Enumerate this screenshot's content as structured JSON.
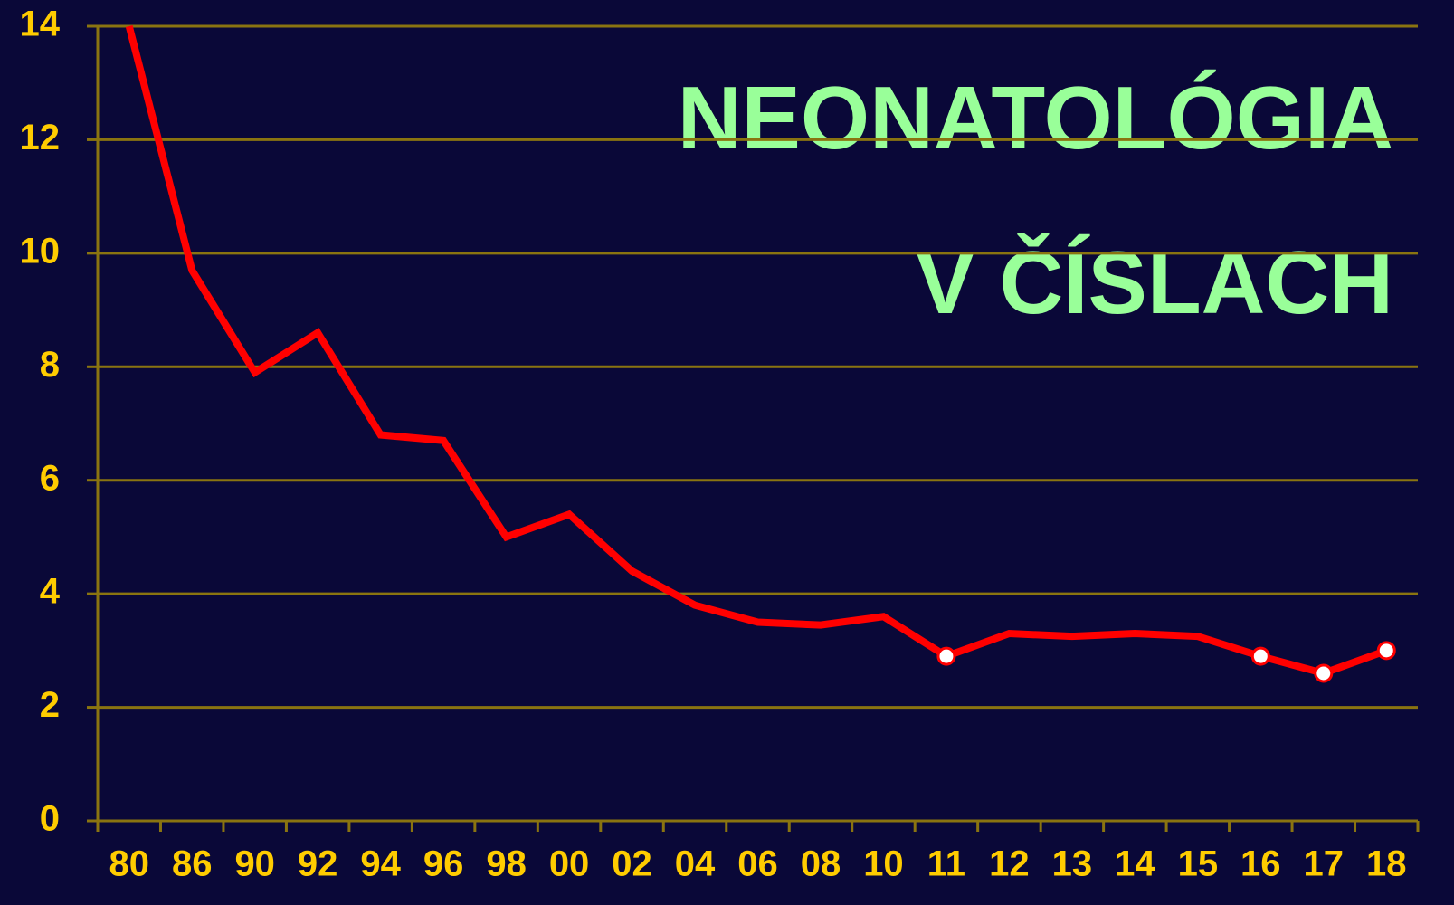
{
  "chart_data": {
    "type": "line",
    "title": "NEONATOLÓGIA",
    "subtitle": "V ČÍSLACH",
    "categories": [
      "80",
      "86",
      "90",
      "92",
      "94",
      "96",
      "98",
      "00",
      "02",
      "04",
      "06",
      "08",
      "10",
      "11",
      "12",
      "13",
      "14",
      "15",
      "16",
      "17",
      "18"
    ],
    "series": [
      {
        "color": "#ff0000",
        "values": [
          14,
          9.7,
          7.9,
          8.6,
          6.8,
          6.7,
          5.0,
          5.4,
          4.4,
          3.8,
          3.5,
          3.45,
          3.6,
          2.9,
          3.3,
          3.25,
          3.3,
          3.25,
          2.9,
          2.6,
          3.0
        ],
        "markers": [
          false,
          false,
          false,
          false,
          false,
          false,
          false,
          false,
          false,
          false,
          false,
          false,
          false,
          true,
          false,
          false,
          false,
          false,
          true,
          true,
          true
        ]
      }
    ],
    "ylim": [
      0,
      14
    ],
    "yticks": [
      0,
      2,
      4,
      6,
      8,
      10,
      12,
      14
    ],
    "grid": true
  }
}
